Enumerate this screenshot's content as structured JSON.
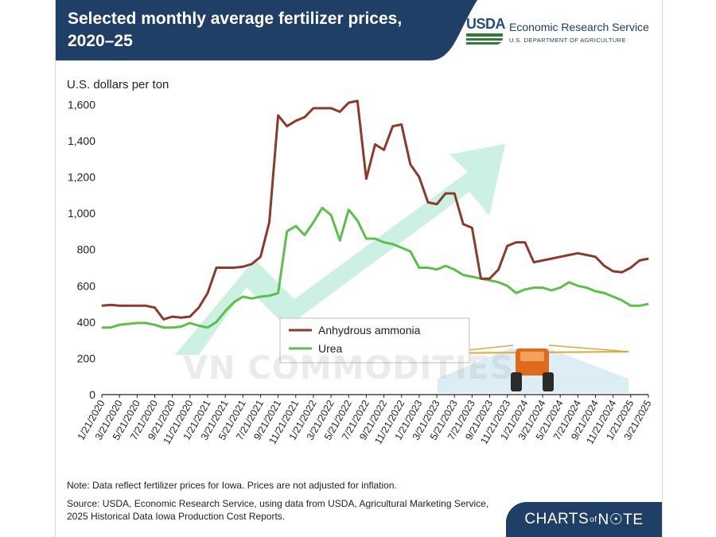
{
  "header": {
    "title": "Selected monthly average  fertilizer prices, 2020–25",
    "org_mark": "USDA",
    "org_name": "Economic Research Service",
    "org_dept": "U.S. DEPARTMENT OF AGRICULTURE"
  },
  "footer": {
    "note": "Note: Data reflect fertilizer prices for Iowa. Prices are not adjusted for inflation.",
    "source": "Source: USDA, Economic Research Service, using data from USDA, Agricultural Marketing Service, 2025 Historical Data Iowa Production Cost Reports.",
    "logo_left": "CHARTS",
    "logo_mid": "of",
    "logo_right": "N☉TE"
  },
  "watermark": "VN COMMODITIES",
  "colors": {
    "header_bg": "#1f3f66",
    "ammonia": "#8b3a2b",
    "urea": "#5cbf4a",
    "watermark_arrow": "#7fd6b0"
  },
  "chart_data": {
    "type": "line",
    "ylabel": "U.S. dollars per ton",
    "ylim": [
      0,
      1650
    ],
    "yticks": [
      0,
      200,
      400,
      600,
      800,
      "1,000",
      "1,200",
      "1,400",
      "1,600"
    ],
    "x": [
      "1/21/2020",
      "2/21/2020",
      "3/21/2020",
      "4/21/2020",
      "5/21/2020",
      "6/21/2020",
      "7/21/2020",
      "8/21/2020",
      "9/21/2020",
      "10/21/2020",
      "11/21/2020",
      "12/21/2020",
      "1/21/2021",
      "2/21/2021",
      "3/21/2021",
      "4/21/2021",
      "5/21/2021",
      "6/21/2021",
      "7/21/2021",
      "8/21/2021",
      "9/21/2021",
      "10/21/2021",
      "11/21/2021",
      "12/21/2021",
      "1/21/2022",
      "2/21/2022",
      "3/21/2022",
      "4/21/2022",
      "5/21/2022",
      "6/21/2022",
      "7/21/2022",
      "8/21/2022",
      "9/21/2022",
      "10/21/2022",
      "11/21/2022",
      "12/21/2022",
      "1/21/2023",
      "2/21/2023",
      "3/21/2023",
      "4/21/2023",
      "5/21/2023",
      "6/21/2023",
      "7/21/2023",
      "8/21/2023",
      "9/21/2023",
      "10/21/2023",
      "11/21/2023",
      "12/21/2023",
      "1/21/2024",
      "2/21/2024",
      "3/21/2024",
      "4/21/2024",
      "5/21/2024",
      "6/21/2024",
      "7/21/2024",
      "8/21/2024",
      "9/21/2024",
      "10/21/2024",
      "11/21/2024",
      "12/21/2024",
      "1/21/2025",
      "2/21/2025",
      "3/21/2025"
    ],
    "xtick_labels": [
      "1/21/2020",
      "3/21/2020",
      "5/21/2020",
      "7/21/2020",
      "9/21/2020",
      "11/21/2020",
      "1/21/2021",
      "3/21/2021",
      "5/21/2021",
      "7/21/2021",
      "9/21/2021",
      "11/21/2021",
      "1/21/2022",
      "3/21/2022",
      "5/21/2022",
      "7/21/2022",
      "9/21/2022",
      "11/21/2022",
      "1/21/2023",
      "3/21/2023",
      "5/21/2023",
      "7/21/2023",
      "9/21/2023",
      "11/21/2023",
      "1/21/2024",
      "3/21/2024",
      "5/21/2024",
      "7/21/2024",
      "9/21/2024",
      "11/21/2024",
      "1/21/2025",
      "3/21/2025"
    ],
    "series": [
      {
        "name": "Anhydrous ammonia",
        "color": "#8b3a2b",
        "values": [
          490,
          495,
          490,
          490,
          490,
          490,
          480,
          415,
          430,
          425,
          430,
          480,
          560,
          700,
          700,
          700,
          705,
          720,
          760,
          950,
          1540,
          1480,
          1510,
          1530,
          1580,
          1580,
          1580,
          1560,
          1610,
          1620,
          1190,
          1380,
          1350,
          1480,
          1490,
          1270,
          1200,
          1060,
          1050,
          1110,
          1110,
          940,
          920,
          640,
          640,
          690,
          820,
          840,
          840,
          730,
          740,
          750,
          760,
          770,
          780,
          770,
          760,
          710,
          680,
          675,
          700,
          740,
          750
        ]
      },
      {
        "name": "Urea",
        "color": "#5cbf4a",
        "values": [
          370,
          370,
          385,
          390,
          395,
          395,
          385,
          370,
          370,
          375,
          395,
          380,
          370,
          400,
          460,
          510,
          540,
          530,
          540,
          545,
          560,
          900,
          930,
          880,
          950,
          1030,
          990,
          850,
          1020,
          960,
          860,
          860,
          840,
          830,
          810,
          790,
          700,
          700,
          690,
          710,
          690,
          660,
          650,
          640,
          630,
          620,
          600,
          560,
          580,
          590,
          590,
          575,
          590,
          620,
          600,
          590,
          570,
          560,
          540,
          520,
          490,
          490,
          500
        ]
      }
    ],
    "legend": {
      "placement": "center-left",
      "entries": [
        "Anhydrous ammonia",
        "Urea"
      ]
    },
    "grid": false
  }
}
